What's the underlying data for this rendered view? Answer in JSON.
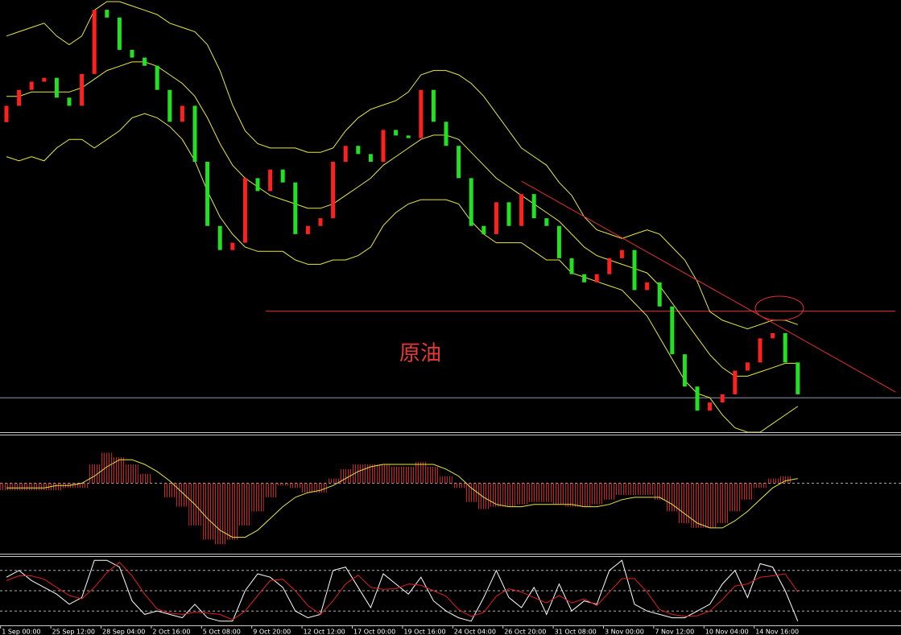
{
  "chart_data": [
    {
      "type": "candlestick",
      "annotation": "原油",
      "categories": [
        "1 Sep 00:00",
        null,
        null,
        null,
        "25 Sep 12:00",
        null,
        null,
        null,
        "28 Sep 04:00",
        null,
        null,
        null,
        "2 Oct 16:00",
        null,
        null,
        null,
        "5 Oct 08:00",
        null,
        null,
        null,
        "9 Oct 20:00",
        null,
        null,
        null,
        "12 Oct 12:00",
        null,
        null,
        null,
        "17 Oct 00:00",
        null,
        null,
        null,
        "19 Oct 16:00",
        null,
        null,
        null,
        "24 Oct 04:00",
        null,
        null,
        null,
        "26 Oct 20:00",
        null,
        null,
        null,
        "31 Oct 08:00",
        null,
        null,
        null,
        "3 Nov 00:00",
        null,
        null,
        null,
        "7 Nov 12:00",
        null,
        null,
        null,
        "10 Nov 04:00",
        null,
        null,
        null,
        "14 Nov 16:00",
        null,
        null,
        null
      ],
      "open": [
        72,
        75.8,
        79.5,
        81.4,
        82.3,
        77.7,
        75.8,
        83.2,
        98.1,
        96.3,
        88.8,
        87,
        85.1,
        79.5,
        72.1,
        75.8,
        62.8,
        47.9,
        42.3,
        44,
        59,
        56,
        61,
        58,
        46,
        47.9,
        49.7,
        62.8,
        66.5,
        64.6,
        62.8,
        70.2,
        68.9,
        68.3,
        79.5,
        72.1,
        66.5,
        59,
        47.9,
        46,
        53.4,
        47.9,
        55.3,
        49.7,
        47.9,
        40.4,
        36.7,
        34.8,
        36.7,
        40.4,
        42.3,
        33,
        34.8,
        29.2,
        18.1,
        10.6,
        5,
        6.9,
        8.8,
        14.3,
        16.2,
        21.8,
        23,
        16.2
      ],
      "close": [
        75.8,
        79.5,
        81.4,
        82.3,
        77.7,
        75.8,
        83.2,
        98.1,
        96.3,
        88.8,
        87,
        85.1,
        79.5,
        72.1,
        75.8,
        62.8,
        47.9,
        42.3,
        44,
        59,
        56,
        61,
        58,
        46,
        47.9,
        49.7,
        62.8,
        66.5,
        64.6,
        62.8,
        70.2,
        68.9,
        68.3,
        79.5,
        72.1,
        66.5,
        59,
        47.9,
        46,
        53.4,
        47.9,
        55.3,
        49.7,
        47.9,
        40.4,
        36.7,
        34.8,
        36.7,
        40.4,
        42.3,
        33,
        34.8,
        29.2,
        18.1,
        10.6,
        5,
        6.9,
        8.8,
        14.3,
        16.2,
        21.8,
        23,
        16.2,
        8.8
      ],
      "up_color": "#ff2020",
      "down_color": "#22e022",
      "series": [
        {
          "color": "#e8e840",
          "values": [
            92,
            93,
            94,
            95,
            92,
            90,
            92,
            98,
            100,
            100,
            99,
            98,
            97,
            95,
            94,
            93,
            90,
            84,
            76,
            70,
            67,
            66,
            66,
            66,
            65,
            65,
            66,
            70,
            73,
            75,
            76,
            77,
            79,
            83,
            84,
            84,
            83,
            81,
            78,
            74,
            70,
            66,
            64,
            62,
            58,
            55,
            50,
            47,
            46,
            45,
            46,
            47,
            46,
            43,
            40,
            35,
            28,
            26,
            25,
            24,
            25,
            26,
            26,
            25
          ]
        },
        {
          "color": "#e8e840",
          "values": [
            78,
            78,
            79,
            79,
            79,
            79,
            80,
            82,
            84,
            85,
            86,
            86,
            85,
            83,
            81,
            78,
            73,
            67,
            62,
            59,
            57,
            55,
            54,
            53,
            52,
            52,
            53,
            55,
            57,
            59,
            62,
            64,
            66,
            68,
            69,
            69,
            68,
            65,
            62,
            59,
            57,
            55,
            53,
            51,
            49,
            46,
            43,
            41,
            40,
            39,
            38,
            37,
            34,
            30,
            26,
            22,
            18,
            15,
            13,
            13,
            14,
            15,
            16,
            16
          ]
        },
        {
          "color": "#e8e840",
          "values": [
            64,
            63,
            64,
            63,
            66,
            68,
            68,
            66,
            68,
            70,
            73,
            74,
            73,
            71,
            68,
            63,
            56,
            50,
            46,
            43,
            42,
            42,
            42,
            40,
            39,
            39,
            40,
            40,
            41,
            43,
            48,
            51,
            53,
            54,
            54,
            54,
            53,
            49,
            46,
            44,
            44,
            44,
            42,
            40,
            40,
            37,
            36,
            35,
            34,
            33,
            30,
            27,
            22,
            17,
            12,
            9,
            8,
            4,
            1,
            0,
            0,
            2,
            4,
            6
          ]
        }
      ],
      "ylim": [
        0,
        100
      ],
      "trendline": {
        "x": [
          41,
          70.8
        ],
        "values": [
          58.3,
          9.3
        ],
        "color": "#e03030"
      },
      "levels": [
        28.1,
        8
      ],
      "level_colors": [
        "#e03030",
        "#8a9bb0"
      ]
    },
    {
      "type": "macd",
      "series": [
        {
          "color": "#d02020",
          "values": [
            -0.15,
            -0.15,
            -0.15,
            -0.15,
            -0.15,
            -0.1,
            -0.1,
            0.4,
            0.65,
            0.55,
            0.4,
            0.2,
            0,
            -0.3,
            -0.5,
            -0.9,
            -1.2,
            -1.3,
            -1.2,
            -0.9,
            -0.6,
            -0.3,
            -0.05,
            -0.1,
            -0.2,
            -0.2,
            0.1,
            0.3,
            0.4,
            0.4,
            0.4,
            0.35,
            0.35,
            0.45,
            0.35,
            0.15,
            -0.1,
            -0.4,
            -0.55,
            -0.5,
            -0.5,
            -0.45,
            -0.4,
            -0.4,
            -0.45,
            -0.5,
            -0.5,
            -0.45,
            -0.35,
            -0.25,
            -0.25,
            -0.25,
            -0.35,
            -0.6,
            -0.85,
            -0.95,
            -0.95,
            -0.85,
            -0.6,
            -0.35,
            -0.1,
            0.1,
            0.15,
            0
          ]
        },
        {
          "color": "#e8e840",
          "values": [
            -0.1,
            -0.1,
            -0.1,
            -0.1,
            -0.05,
            -0.05,
            0,
            0.15,
            0.35,
            0.5,
            0.5,
            0.4,
            0.25,
            0.05,
            -0.2,
            -0.45,
            -0.75,
            -1,
            -1.15,
            -1.15,
            -1,
            -0.75,
            -0.5,
            -0.3,
            -0.2,
            -0.15,
            -0.05,
            0.1,
            0.25,
            0.35,
            0.4,
            0.4,
            0.4,
            0.4,
            0.4,
            0.3,
            0.15,
            -0.1,
            -0.3,
            -0.45,
            -0.5,
            -0.5,
            -0.45,
            -0.45,
            -0.45,
            -0.45,
            -0.5,
            -0.5,
            -0.45,
            -0.35,
            -0.3,
            -0.3,
            -0.3,
            -0.45,
            -0.65,
            -0.85,
            -0.95,
            -0.95,
            -0.8,
            -0.6,
            -0.35,
            -0.1,
            0.05,
            0.1
          ]
        }
      ],
      "ylim": [
        -1.5,
        1.0
      ],
      "levels": [
        0
      ]
    },
    {
      "type": "line",
      "series": [
        {
          "color": "#ffffff",
          "values": [
            70,
            80,
            65,
            55,
            45,
            30,
            40,
            95,
            95,
            85,
            35,
            15,
            20,
            15,
            10,
            30,
            10,
            5,
            5,
            50,
            75,
            70,
            55,
            20,
            10,
            15,
            80,
            85,
            55,
            25,
            75,
            60,
            45,
            70,
            35,
            20,
            10,
            5,
            40,
            80,
            40,
            25,
            55,
            15,
            60,
            20,
            35,
            30,
            80,
            95,
            30,
            20,
            15,
            10,
            10,
            20,
            30,
            60,
            80,
            40,
            90,
            85,
            50,
            5
          ]
        },
        {
          "color": "#e02020",
          "values": [
            65,
            72,
            72,
            67,
            55,
            43,
            38,
            55,
            77,
            92,
            72,
            45,
            23,
            17,
            15,
            18,
            17,
            15,
            7,
            20,
            43,
            65,
            67,
            50,
            28,
            15,
            35,
            60,
            73,
            55,
            52,
            53,
            60,
            58,
            50,
            42,
            22,
            12,
            18,
            42,
            53,
            48,
            40,
            32,
            43,
            32,
            38,
            28,
            48,
            68,
            68,
            48,
            22,
            15,
            12,
            13,
            20,
            37,
            57,
            60,
            70,
            72,
            75,
            48
          ]
        }
      ],
      "ylim": [
        0,
        100
      ],
      "levels": [
        20,
        50,
        80
      ]
    }
  ]
}
